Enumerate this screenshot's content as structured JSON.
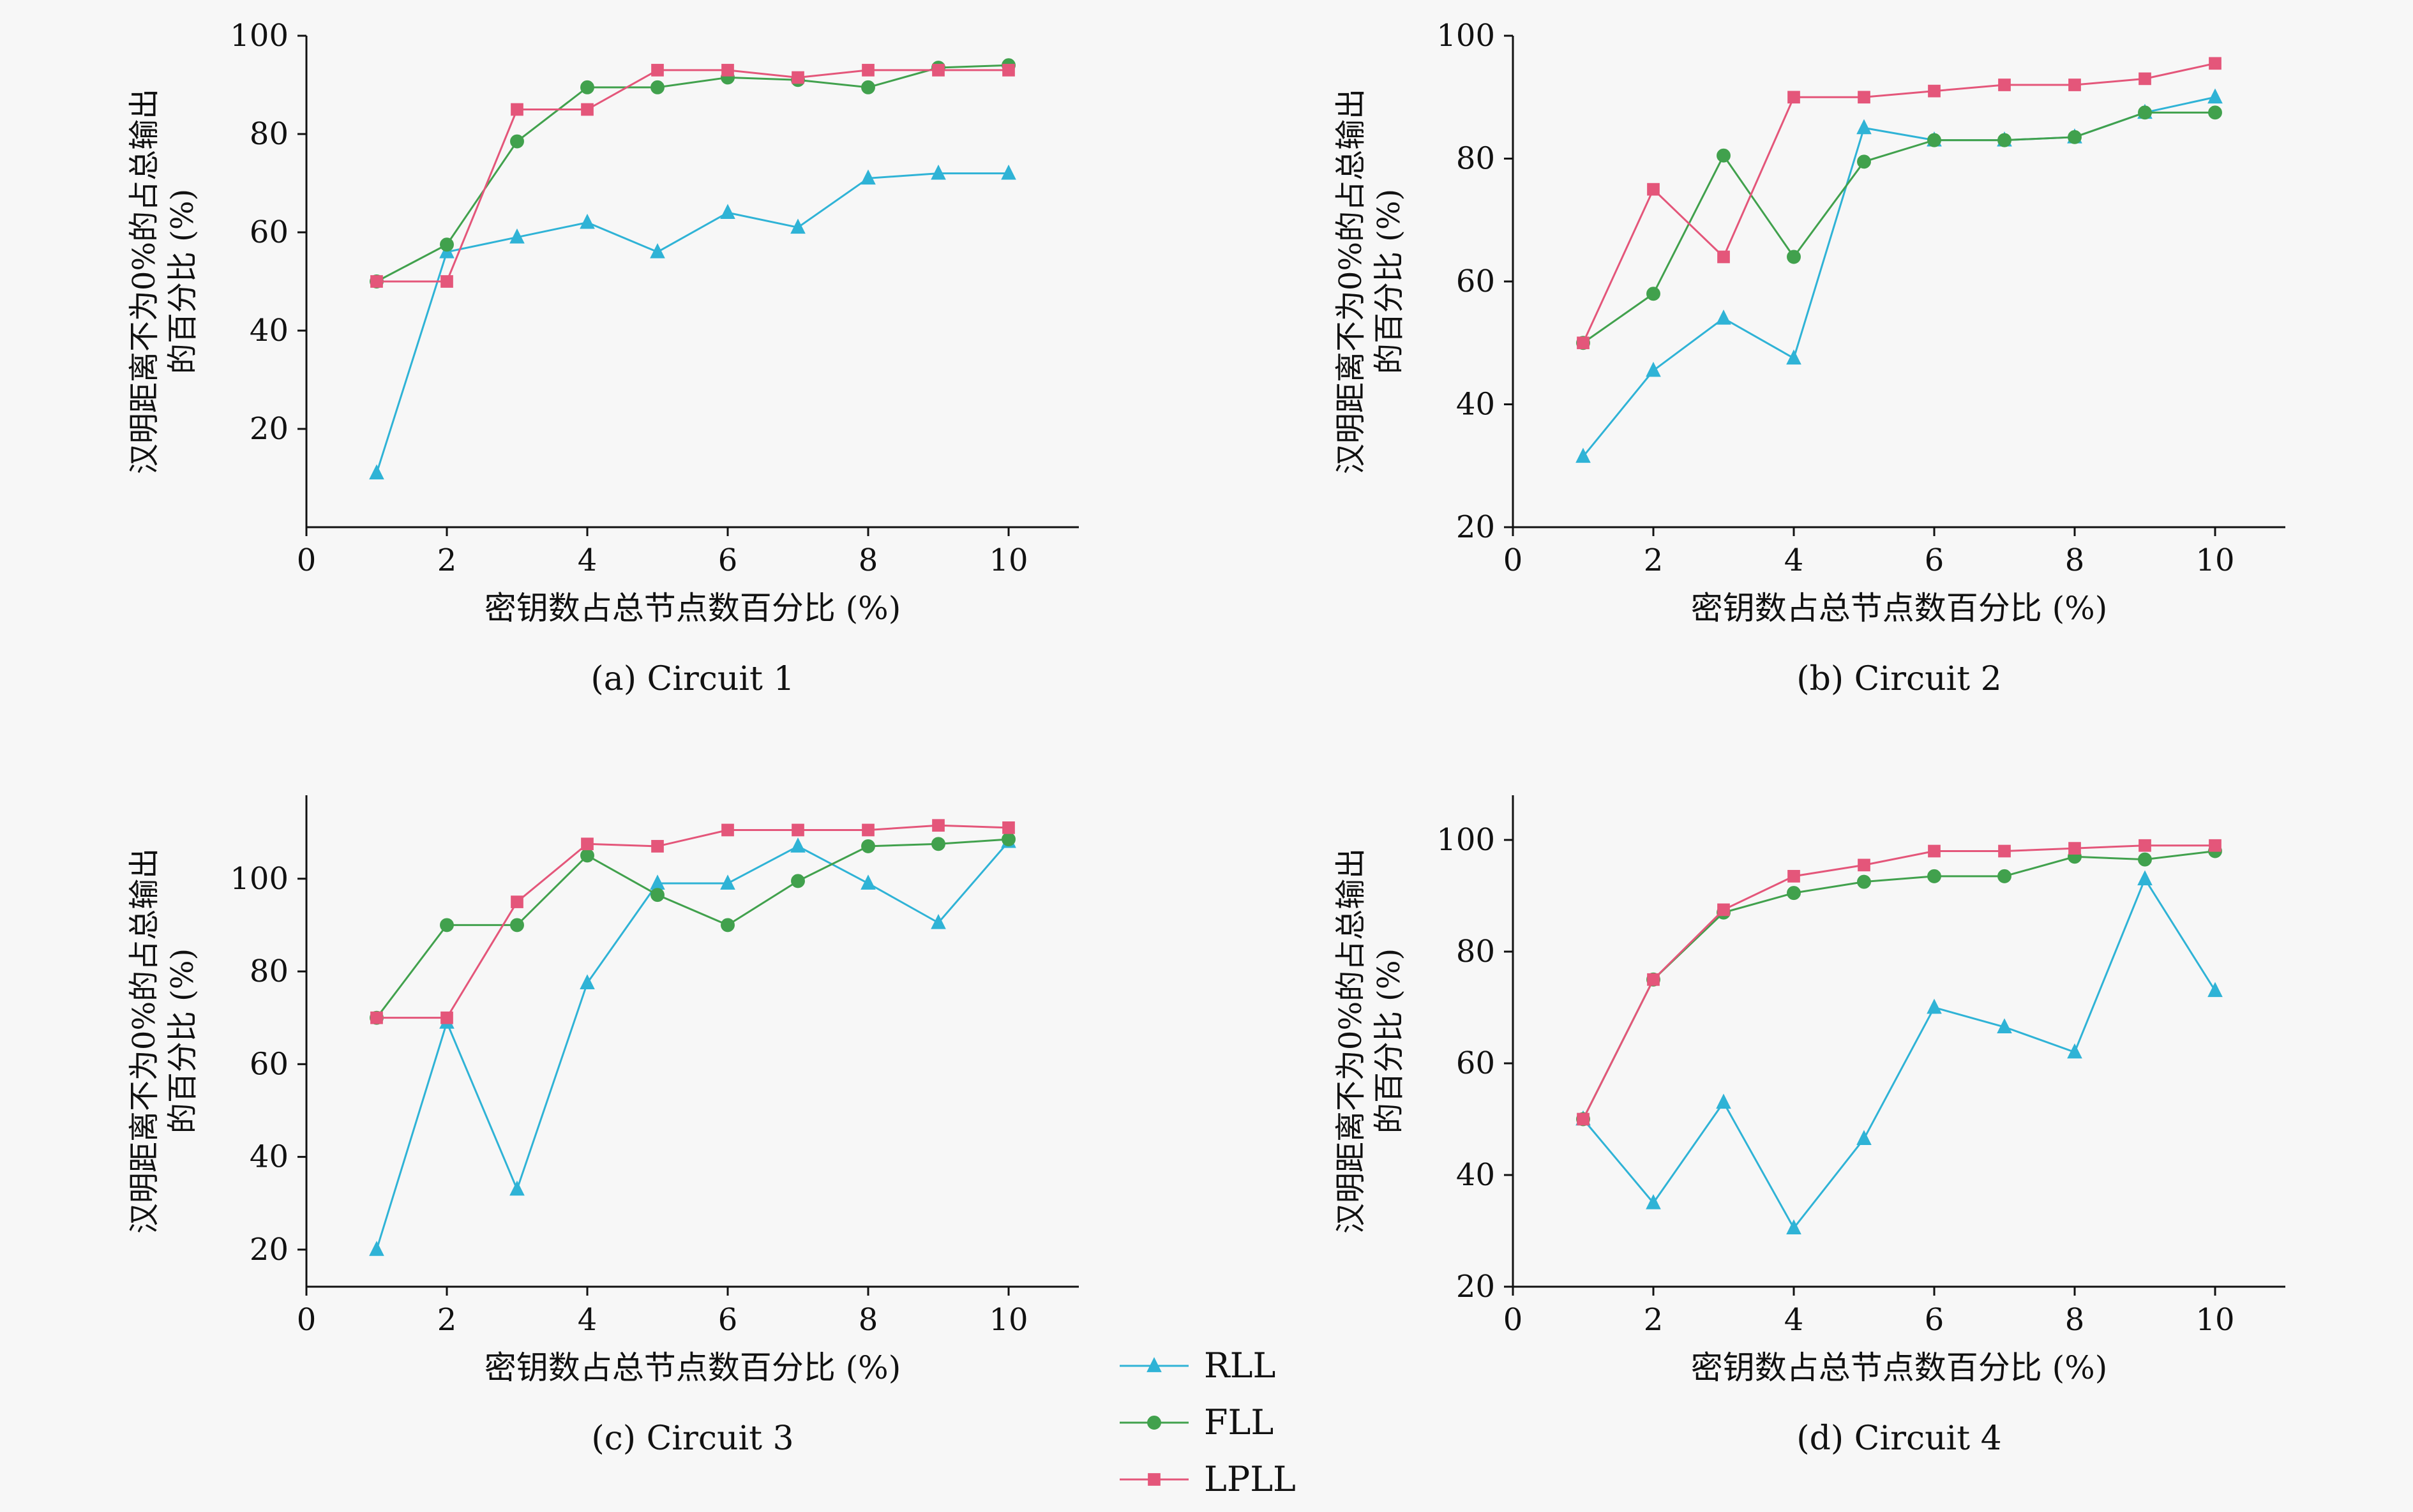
{
  "background": "#f7f7f7",
  "text_color": "#111111",
  "legend": {
    "position": "bottom-center",
    "items": [
      {
        "label": "RLL",
        "color": "#2fb3d6",
        "marker": "triangle"
      },
      {
        "label": "FLL",
        "color": "#41a14d",
        "marker": "circle"
      },
      {
        "label": "LPLL",
        "color": "#e4567a",
        "marker": "square"
      }
    ]
  },
  "chart_data": [
    {
      "type": "line",
      "caption": "(a) Circuit 1",
      "xlabel": "密钥数占总节点数百分比 (%)",
      "ylabel_line1": "汉明距离不为0%的占总输出",
      "ylabel_line2": "的百分比 (%)",
      "x": [
        1,
        2,
        3,
        4,
        5,
        6,
        7,
        8,
        9,
        10
      ],
      "xticks": [
        0,
        2,
        4,
        6,
        8,
        10
      ],
      "xlim": [
        0,
        11
      ],
      "yticks": [
        20,
        40,
        60,
        80,
        100
      ],
      "ylim": [
        0,
        100
      ],
      "grid": false,
      "series": [
        {
          "name": "RLL",
          "marker": "triangle",
          "color": "#2fb3d6",
          "values": [
            11,
            56,
            59,
            62,
            56,
            64,
            61,
            71,
            72,
            72
          ]
        },
        {
          "name": "FLL",
          "marker": "circle",
          "color": "#41a14d",
          "values": [
            50,
            57.5,
            78.5,
            89.5,
            89.5,
            91.5,
            91,
            89.5,
            93.5,
            94
          ]
        },
        {
          "name": "LPLL",
          "marker": "square",
          "color": "#e4567a",
          "values": [
            50,
            50,
            85,
            85,
            93,
            93,
            91.5,
            93,
            93,
            93
          ]
        }
      ]
    },
    {
      "type": "line",
      "caption": "(b) Circuit 2",
      "xlabel": "密钥数占总节点数百分比 (%)",
      "ylabel_line1": "汉明距离不为0%的占总输出",
      "ylabel_line2": "的百分比 (%)",
      "x": [
        1,
        2,
        3,
        4,
        5,
        6,
        7,
        8,
        9,
        10
      ],
      "xticks": [
        0,
        2,
        4,
        6,
        8,
        10
      ],
      "xlim": [
        0,
        11
      ],
      "yticks": [
        20,
        40,
        60,
        80,
        100
      ],
      "ylim": [
        20,
        100
      ],
      "grid": false,
      "series": [
        {
          "name": "RLL",
          "marker": "triangle",
          "color": "#2fb3d6",
          "values": [
            31.5,
            45.5,
            54,
            47.5,
            85,
            83,
            83,
            83.5,
            87.5,
            90
          ]
        },
        {
          "name": "FLL",
          "marker": "circle",
          "color": "#41a14d",
          "values": [
            50,
            58,
            80.5,
            64,
            79.5,
            83,
            83,
            83.5,
            87.5,
            87.5
          ]
        },
        {
          "name": "LPLL",
          "marker": "square",
          "color": "#e4567a",
          "values": [
            50,
            75,
            64,
            90,
            90,
            91,
            92,
            92,
            93,
            95.5
          ]
        }
      ]
    },
    {
      "type": "line",
      "caption": "(c) Circuit 3",
      "xlabel": "密钥数占总节点数百分比 (%)",
      "ylabel_line1": "汉明距离不为0%的占总输出",
      "ylabel_line2": "的百分比 (%)",
      "x": [
        1,
        2,
        3,
        4,
        5,
        6,
        7,
        8,
        9,
        10
      ],
      "xticks": [
        0,
        2,
        4,
        6,
        8,
        10
      ],
      "xlim": [
        0,
        11
      ],
      "yticks": [
        20,
        40,
        60,
        80,
        100
      ],
      "ylim": [
        12,
        118
      ],
      "grid": false,
      "series": [
        {
          "name": "RLL",
          "marker": "triangle",
          "color": "#2fb3d6",
          "values": [
            20,
            69,
            33,
            77.5,
            99,
            99,
            107,
            99,
            90.5,
            108
          ]
        },
        {
          "name": "FLL",
          "marker": "circle",
          "color": "#41a14d",
          "values": [
            70,
            90,
            90,
            105,
            96.5,
            90,
            99.5,
            107,
            107.5,
            108.5
          ]
        },
        {
          "name": "LPLL",
          "marker": "square",
          "color": "#e4567a",
          "values": [
            70,
            70,
            95,
            107.5,
            107,
            110.5,
            110.5,
            110.5,
            111.5,
            111
          ]
        }
      ]
    },
    {
      "type": "line",
      "caption": "(d) Circuit 4",
      "xlabel": "密钥数占总节点数百分比 (%)",
      "ylabel_line1": "汉明距离不为0%的占总输出",
      "ylabel_line2": "的百分比 (%)",
      "x": [
        1,
        2,
        3,
        4,
        5,
        6,
        7,
        8,
        9,
        10
      ],
      "xticks": [
        0,
        2,
        4,
        6,
        8,
        10
      ],
      "xlim": [
        0,
        11
      ],
      "yticks": [
        20,
        40,
        60,
        80,
        100
      ],
      "ylim": [
        20,
        108
      ],
      "grid": false,
      "series": [
        {
          "name": "RLL",
          "marker": "triangle",
          "color": "#2fb3d6",
          "values": [
            50,
            35,
            53,
            30.5,
            46.5,
            70,
            66.5,
            62,
            93,
            73
          ]
        },
        {
          "name": "FLL",
          "marker": "circle",
          "color": "#41a14d",
          "values": [
            50,
            75,
            87,
            90.5,
            92.5,
            93.5,
            93.5,
            97,
            96.5,
            98
          ]
        },
        {
          "name": "LPLL",
          "marker": "square",
          "color": "#e4567a",
          "values": [
            50,
            75,
            87.5,
            93.5,
            95.5,
            98,
            98,
            98.5,
            99,
            99
          ]
        }
      ]
    }
  ]
}
